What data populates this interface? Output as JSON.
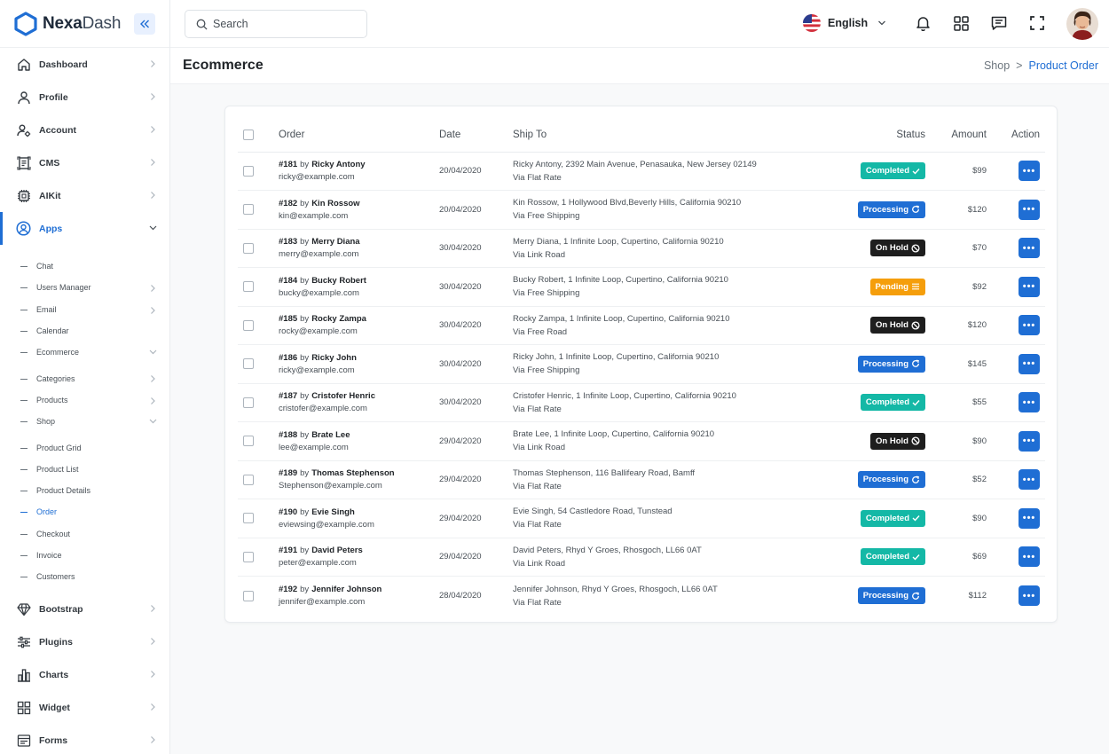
{
  "brand": {
    "name_bold": "Nexa",
    "name_light": "Dash"
  },
  "sidebar": {
    "items": [
      {
        "key": "dashboard",
        "label": "Dashboard",
        "icon": "home-icon"
      },
      {
        "key": "profile",
        "label": "Profile",
        "icon": "user-icon"
      },
      {
        "key": "account",
        "label": "Account",
        "icon": "user-settings-icon"
      },
      {
        "key": "cms",
        "label": "CMS",
        "icon": "document-icon"
      },
      {
        "key": "aikit",
        "label": "AIKit",
        "icon": "chip-icon"
      },
      {
        "key": "apps",
        "label": "Apps",
        "icon": "user-circle-icon",
        "active": true
      }
    ],
    "apps_sub": [
      {
        "label": "Chat",
        "chevron": false
      },
      {
        "label": "Users Manager",
        "chevron": true
      },
      {
        "label": "Email",
        "chevron": true
      },
      {
        "label": "Calendar",
        "chevron": false
      },
      {
        "label": "Ecommerce",
        "chevron": true,
        "open": true
      }
    ],
    "ecommerce_sub": [
      {
        "label": "Categories",
        "chevron": true
      },
      {
        "label": "Products",
        "chevron": true
      },
      {
        "label": "Shop",
        "chevron": true,
        "open": true
      }
    ],
    "shop_sub": [
      {
        "label": "Product Grid"
      },
      {
        "label": "Product List"
      },
      {
        "label": "Product Details"
      },
      {
        "label": "Order",
        "active": true
      },
      {
        "label": "Checkout"
      },
      {
        "label": "Invoice"
      },
      {
        "label": "Customers"
      }
    ],
    "bottom_items": [
      {
        "label": "Bootstrap",
        "icon": "diamond-icon"
      },
      {
        "label": "Plugins",
        "icon": "sliders-icon"
      },
      {
        "label": "Charts",
        "icon": "bar-chart-icon"
      },
      {
        "label": "Widget",
        "icon": "grid-icon"
      },
      {
        "label": "Forms",
        "icon": "form-icon"
      }
    ]
  },
  "topbar": {
    "search_placeholder": "Search",
    "language": "English"
  },
  "page": {
    "title": "Ecommerce",
    "breadcrumb": {
      "parent": "Shop",
      "separator": ">",
      "current": "Product Order"
    }
  },
  "table": {
    "headers": {
      "order": "Order",
      "date": "Date",
      "ship_to": "Ship To",
      "status": "Status",
      "amount": "Amount",
      "action": "Action"
    },
    "by_word": "by",
    "action_label": "•••",
    "rows": [
      {
        "num": "#181",
        "customer": "Ricky Antony",
        "email": "ricky@example.com",
        "date": "20/04/2020",
        "address": "Ricky Antony, 2392 Main Avenue, Penasauka, New Jersey 02149",
        "via": "Via Flat Rate",
        "status": "Completed",
        "status_type": "completed",
        "amount": "$99"
      },
      {
        "num": "#182",
        "customer": "Kin Rossow",
        "email": "kin@example.com",
        "date": "20/04/2020",
        "address": "Kin Rossow, 1 Hollywood Blvd,Beverly Hills, California 90210",
        "via": "Via Free Shipping",
        "status": "Processing",
        "status_type": "processing",
        "amount": "$120"
      },
      {
        "num": "#183",
        "customer": "Merry Diana",
        "email": "merry@example.com",
        "date": "30/04/2020",
        "address": "Merry Diana, 1 Infinite Loop, Cupertino, California 90210",
        "via": "Via Link Road",
        "status": "On Hold",
        "status_type": "onhold",
        "amount": "$70"
      },
      {
        "num": "#184",
        "customer": "Bucky Robert",
        "email": "bucky@example.com",
        "date": "30/04/2020",
        "address": "Bucky Robert, 1 Infinite Loop, Cupertino, California 90210",
        "via": "Via Free Shipping",
        "status": "Pending",
        "status_type": "pending",
        "amount": "$92"
      },
      {
        "num": "#185",
        "customer": "Rocky Zampa",
        "email": "rocky@example.com",
        "date": "30/04/2020",
        "address": "Rocky Zampa, 1 Infinite Loop, Cupertino, California 90210",
        "via": "Via Free Road",
        "status": "On Hold",
        "status_type": "onhold",
        "amount": "$120"
      },
      {
        "num": "#186",
        "customer": "Ricky John",
        "email": "ricky@example.com",
        "date": "30/04/2020",
        "address": "Ricky John, 1 Infinite Loop, Cupertino, California 90210",
        "via": "Via Free Shipping",
        "status": "Processing",
        "status_type": "processing",
        "amount": "$145"
      },
      {
        "num": "#187",
        "customer": "Cristofer Henric",
        "email": "cristofer@example.com",
        "date": "30/04/2020",
        "address": "Cristofer Henric, 1 Infinite Loop, Cupertino, California 90210",
        "via": "Via Flat Rate",
        "status": "Completed",
        "status_type": "completed",
        "amount": "$55"
      },
      {
        "num": "#188",
        "customer": "Brate Lee",
        "email": "lee@example.com",
        "date": "29/04/2020",
        "address": "Brate Lee, 1 Infinite Loop, Cupertino, California 90210",
        "via": "Via Link Road",
        "status": "On Hold",
        "status_type": "onhold",
        "amount": "$90"
      },
      {
        "num": "#189",
        "customer": "Thomas Stephenson",
        "email": "Stephenson@example.com",
        "date": "29/04/2020",
        "address": "Thomas Stephenson, 116 Ballifeary Road, Bamff",
        "via": "Via Flat Rate",
        "status": "Processing",
        "status_type": "processing",
        "amount": "$52"
      },
      {
        "num": "#190",
        "customer": "Evie Singh",
        "email": "eviewsing@example.com",
        "date": "29/04/2020",
        "address": "Evie Singh, 54 Castledore Road, Tunstead",
        "via": "Via Flat Rate",
        "status": "Completed",
        "status_type": "completed",
        "amount": "$90"
      },
      {
        "num": "#191",
        "customer": "David Peters",
        "email": "peter@example.com",
        "date": "29/04/2020",
        "address": "David Peters, Rhyd Y Groes, Rhosgoch, LL66 0AT",
        "via": "Via Link Road",
        "status": "Completed",
        "status_type": "completed",
        "amount": "$69"
      },
      {
        "num": "#192",
        "customer": "Jennifer Johnson",
        "email": "jennifer@example.com",
        "date": "28/04/2020",
        "address": "Jennifer Johnson, Rhyd Y Groes, Rhosgoch, LL66 0AT",
        "via": "Via Flat Rate",
        "status": "Processing",
        "status_type": "processing",
        "amount": "$112"
      }
    ]
  },
  "colors": {
    "primary": "#1f6ed4",
    "completed": "#14b8a6",
    "processing": "#1f6ed4",
    "onhold": "#1e1e1e",
    "pending": "#f59e0b"
  }
}
